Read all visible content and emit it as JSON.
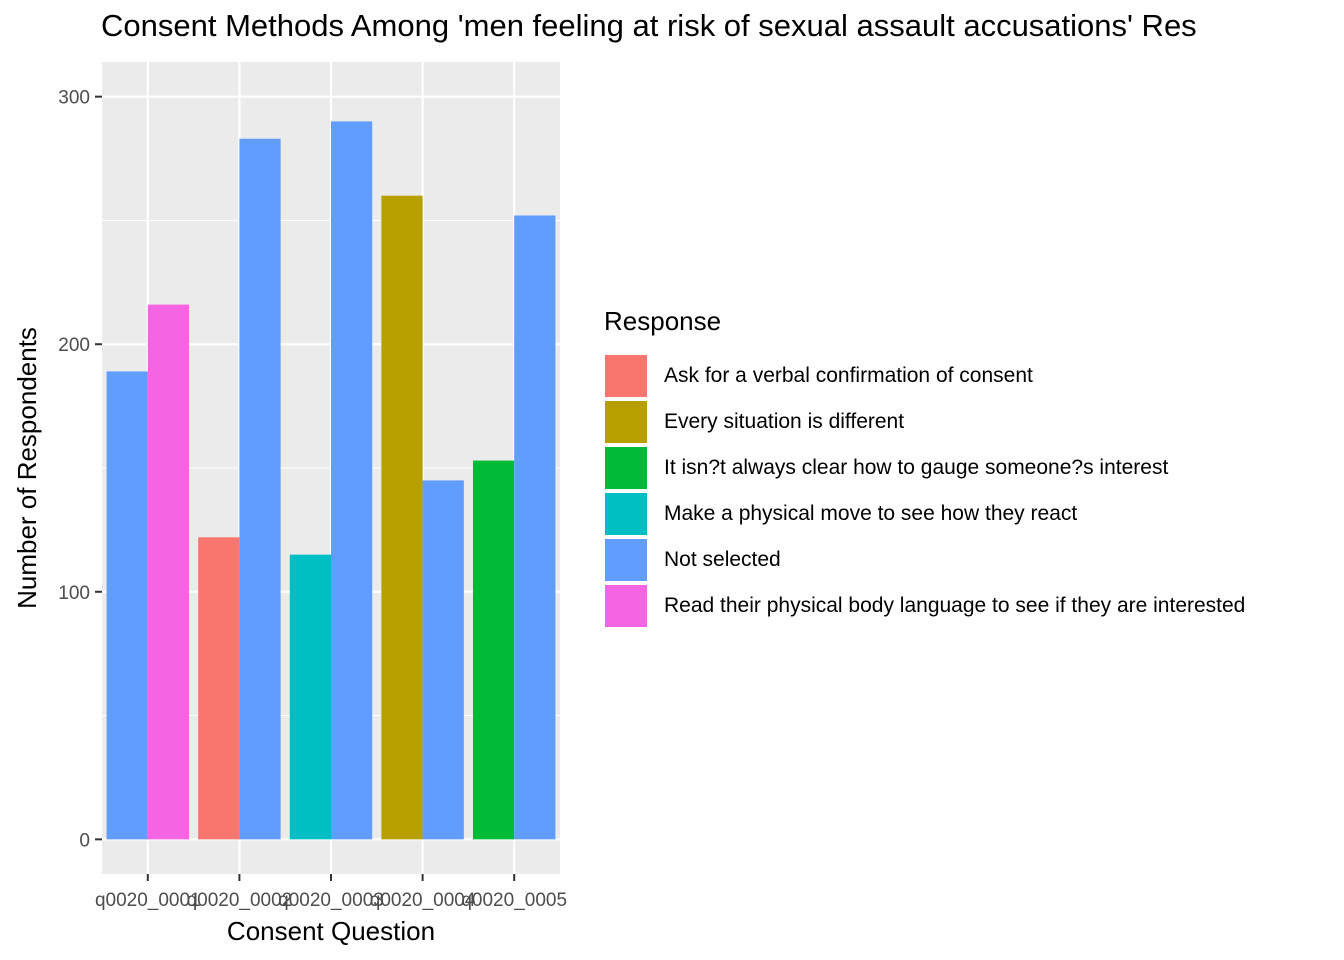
{
  "chart_data": {
    "type": "bar",
    "title": "Consent Methods Among 'men feeling at risk of sexual assault accusations' Res",
    "xlabel": "Consent Question",
    "ylabel": "Number of Respondents",
    "categories": [
      "q0020_0001",
      "q0020_0002",
      "q0020_0003",
      "q0020_0004",
      "q0020_0005"
    ],
    "ylim": [
      -14,
      314
    ],
    "yticks": [
      0,
      100,
      200,
      300
    ],
    "yminor": [
      50,
      150,
      250
    ],
    "grid": true,
    "legend_title": "Response",
    "legend_position": "right",
    "bars": [
      {
        "category": "q0020_0001",
        "response": "Not selected",
        "value": 189
      },
      {
        "category": "q0020_0001",
        "response": "Read their physical body language to see if they are interested",
        "value": 216
      },
      {
        "category": "q0020_0002",
        "response": "Ask for a verbal confirmation of consent",
        "value": 122
      },
      {
        "category": "q0020_0002",
        "response": "Not selected",
        "value": 283
      },
      {
        "category": "q0020_0003",
        "response": "Make a physical move to see how they react",
        "value": 115
      },
      {
        "category": "q0020_0003",
        "response": "Not selected",
        "value": 290
      },
      {
        "category": "q0020_0004",
        "response": "Every situation is different",
        "value": 260
      },
      {
        "category": "q0020_0004",
        "response": "Not selected",
        "value": 145
      },
      {
        "category": "q0020_0005",
        "response": "It isn?t always clear how to gauge someone?s interest",
        "value": 153
      },
      {
        "category": "q0020_0005",
        "response": "Not selected",
        "value": 252
      }
    ],
    "legend": [
      {
        "label": "Ask for a verbal confirmation of consent",
        "color": "#F8766D"
      },
      {
        "label": "Every situation is different",
        "color": "#B79F00"
      },
      {
        "label": "It isn?t always clear how to gauge someone?s interest",
        "color": "#00BA38"
      },
      {
        "label": "Make a physical move to see how they react",
        "color": "#00BFC4"
      },
      {
        "label": "Not selected",
        "color": "#619CFF"
      },
      {
        "label": "Read their physical body language to see if they are interested",
        "color": "#F564E3"
      }
    ]
  }
}
